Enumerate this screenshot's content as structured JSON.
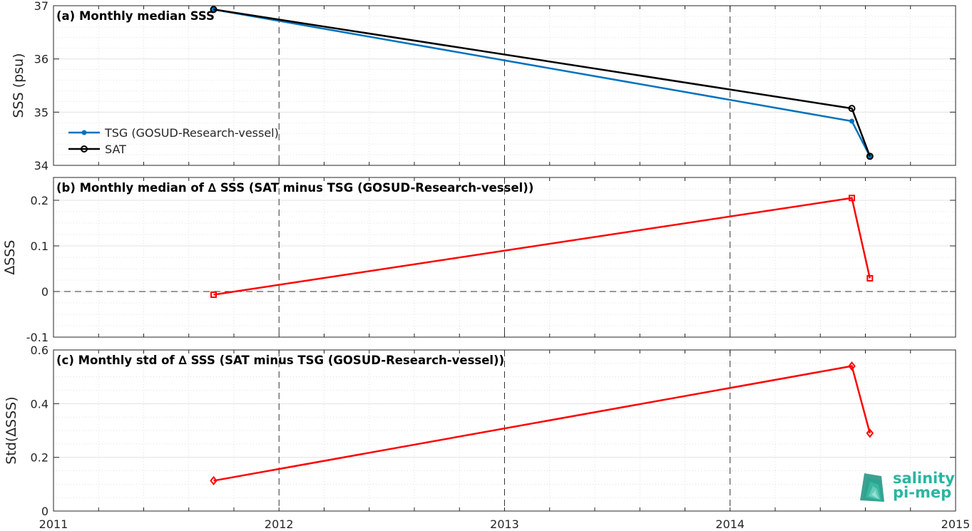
{
  "chart_data": [
    {
      "type": "line",
      "title": "(a) Monthly median SSS",
      "xlabel": "",
      "ylabel": "SSS (psu)",
      "xlim": [
        2011,
        2015
      ],
      "ylim": [
        34,
        37
      ],
      "xticks": [
        "2011",
        "2012",
        "2013",
        "2014",
        "2015"
      ],
      "yticks": [
        "34",
        "35",
        "36",
        "37"
      ],
      "grid": true,
      "legend": "bottom-left",
      "series": [
        {
          "name": "TSG (GOSUD-Research-vessel)",
          "color": "#0072bd",
          "marker": "dot",
          "x": [
            2011.71,
            2014.54,
            2014.62
          ],
          "y": [
            36.93,
            34.83,
            34.17
          ]
        },
        {
          "name": "SAT",
          "color": "#000000",
          "marker": "circle",
          "x": [
            2011.71,
            2014.54,
            2014.62
          ],
          "y": [
            36.93,
            35.07,
            34.17
          ]
        }
      ]
    },
    {
      "type": "line",
      "title": "(b) Monthly median of ∆ SSS (SAT minus TSG (GOSUD-Research-vessel))",
      "xlabel": "",
      "ylabel": "∆SSS",
      "xlim": [
        2011,
        2015
      ],
      "ylim": [
        -0.1,
        0.25
      ],
      "yticks": [
        "-0.1",
        "0",
        "0.1",
        "0.2"
      ],
      "grid": true,
      "series": [
        {
          "color": "#ff0000",
          "marker": "square",
          "x": [
            2011.71,
            2014.54,
            2014.62
          ],
          "y": [
            -0.007,
            0.205,
            0.029
          ]
        }
      ]
    },
    {
      "type": "line",
      "title": "(c) Monthly std of ∆ SSS (SAT minus TSG (GOSUD-Research-vessel))",
      "xlabel": "",
      "ylabel": "Std(∆SSS)",
      "xlim": [
        2011,
        2015
      ],
      "ylim": [
        0,
        0.6
      ],
      "yticks": [
        "0",
        "0.2",
        "0.4",
        "0.6"
      ],
      "grid": true,
      "series": [
        {
          "color": "#ff0000",
          "marker": "diamond",
          "x": [
            2011.71,
            2014.54,
            2014.62
          ],
          "y": [
            0.113,
            0.54,
            0.29
          ]
        }
      ]
    }
  ],
  "logo": {
    "line1": "salinity",
    "line2": "pi-mep"
  }
}
